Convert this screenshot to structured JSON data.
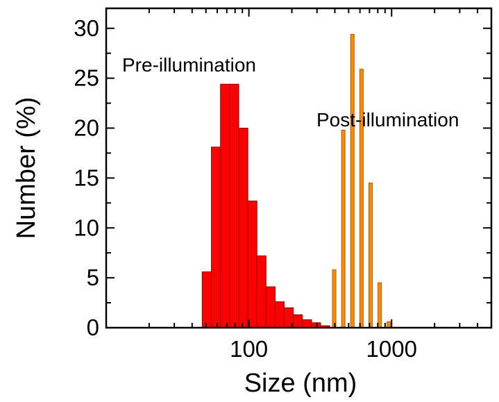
{
  "chart_data": {
    "type": "bar",
    "xlabel": "Size (nm)",
    "ylabel": "Number (%)",
    "x_scale": "log",
    "xlim": [
      10,
      5000
    ],
    "ylim": [
      0,
      32
    ],
    "x_ticks": [
      {
        "value": 100,
        "label": "100"
      },
      {
        "value": 1000,
        "label": "1000"
      }
    ],
    "y_ticks": [
      {
        "value": 0,
        "label": "0"
      },
      {
        "value": 5,
        "label": "5"
      },
      {
        "value": 10,
        "label": "10"
      },
      {
        "value": 15,
        "label": "15"
      },
      {
        "value": 20,
        "label": "20"
      },
      {
        "value": 25,
        "label": "25"
      },
      {
        "value": 30,
        "label": "30"
      }
    ],
    "grid": false,
    "annotations": [
      {
        "text": "Pre-illumination",
        "series": 0
      },
      {
        "text": "Post-illumination",
        "series": 1
      }
    ],
    "series": [
      {
        "color": "#ff0000",
        "edge": "#8b0000",
        "style": "wide",
        "x": [
          50.7,
          58.8,
          68.1,
          78.8,
          91.3,
          105.7,
          122.4,
          141.8,
          164.2,
          190.1,
          220.2,
          255.0,
          295.3,
          342.0
        ],
        "values": [
          5.6,
          18.1,
          24.4,
          24.4,
          20.0,
          12.7,
          7.2,
          4.1,
          2.6,
          2.0,
          1.3,
          0.8,
          0.5,
          0.2
        ]
      },
      {
        "color": "#ff8c00",
        "edge": "#b35900",
        "style": "narrow",
        "x": [
          396.0,
          458.6,
          531.1,
          615.1,
          712.3,
          824.9,
          955.3
        ],
        "values": [
          5.8,
          19.8,
          29.4,
          25.9,
          14.5,
          4.5,
          0.6
        ]
      }
    ]
  }
}
